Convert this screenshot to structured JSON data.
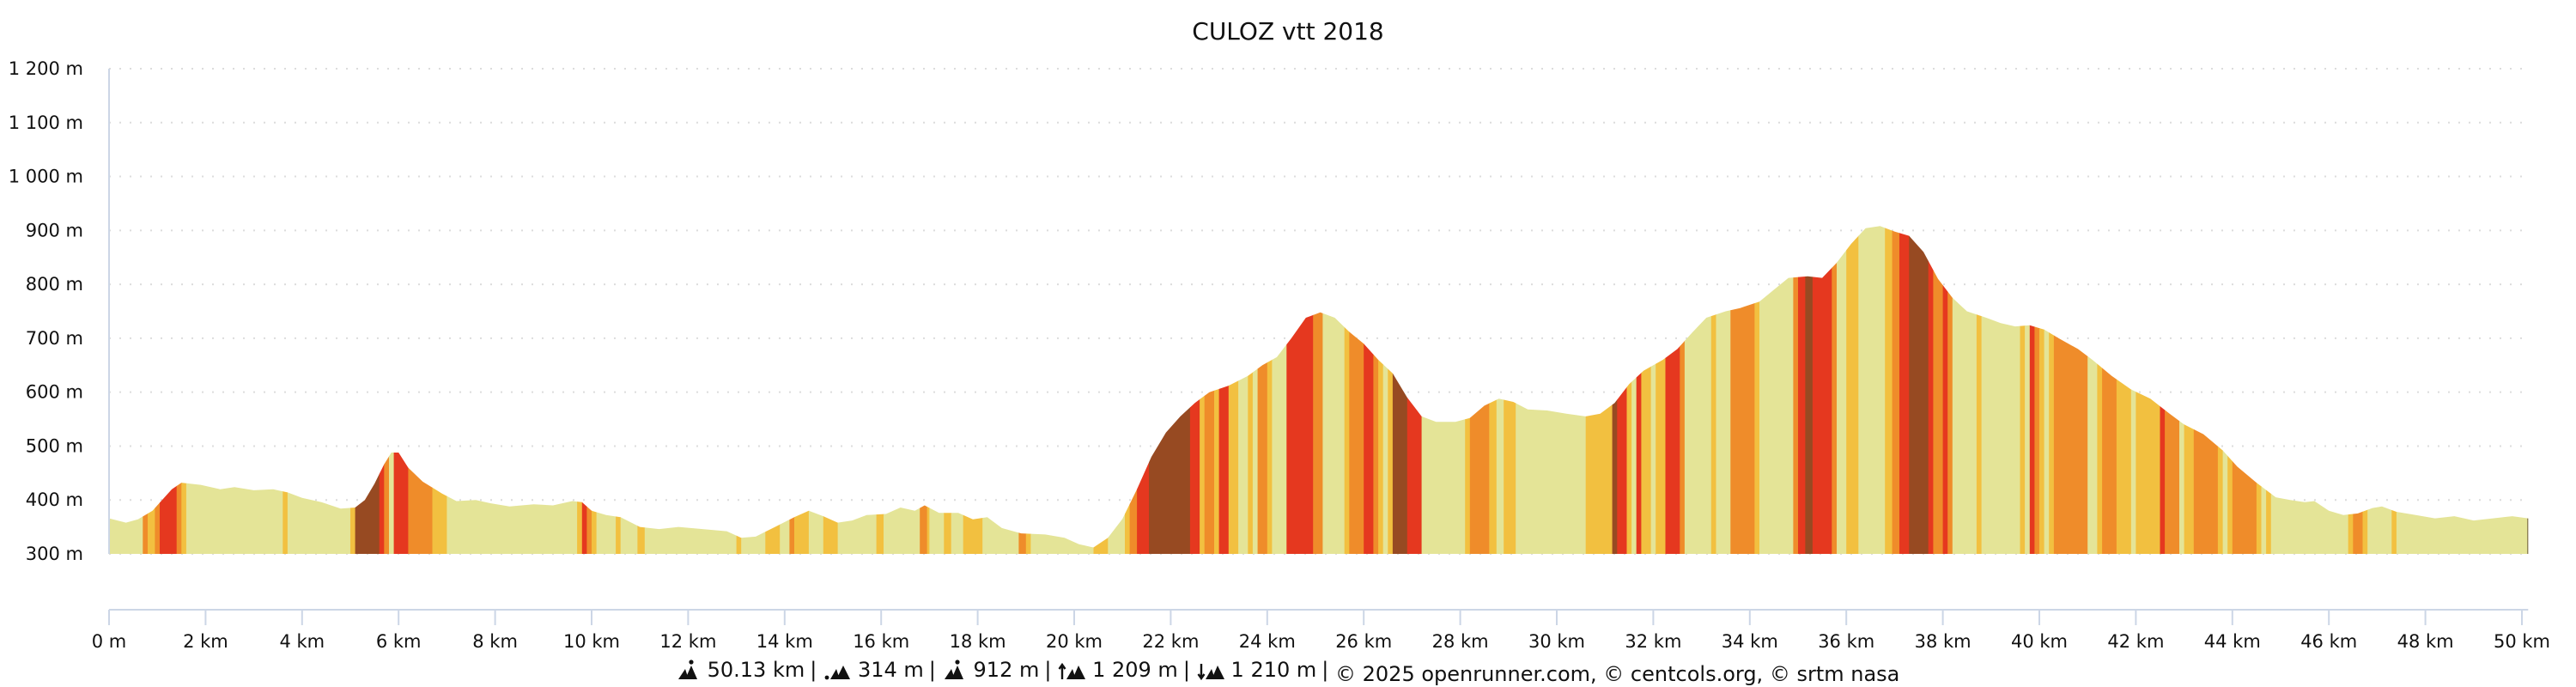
{
  "chart_data": {
    "type": "area",
    "title": "CULOZ vtt 2018",
    "xlabel": "",
    "ylabel": "",
    "x_unit": "km",
    "y_unit": "m",
    "xlim": [
      0,
      50.13
    ],
    "ylim": [
      300,
      1200
    ],
    "grid": true,
    "y_ticks": [
      "1 200 m",
      "1 100 m",
      "1 000 m",
      "900 m",
      "800 m",
      "700 m",
      "600 m",
      "500 m",
      "400 m",
      "300 m"
    ],
    "y_tick_values": [
      1200,
      1100,
      1000,
      900,
      800,
      700,
      600,
      500,
      400,
      300
    ],
    "x_ticks": [
      "0 m",
      "2 km",
      "4 km",
      "6 km",
      "8 km",
      "10 km",
      "12 km",
      "14 km",
      "16 km",
      "18 km",
      "20 km",
      "22 km",
      "24 km",
      "26 km",
      "28 km",
      "30 km",
      "32 km",
      "34 km",
      "36 km",
      "38 km",
      "40 km",
      "42 km",
      "44 km",
      "46 km",
      "48 km",
      "50 km"
    ],
    "x_tick_values": [
      0,
      2,
      4,
      6,
      8,
      10,
      12,
      14,
      16,
      18,
      20,
      22,
      24,
      26,
      28,
      30,
      32,
      34,
      36,
      38,
      40,
      42,
      44,
      46,
      48,
      50
    ],
    "slope_colors": {
      "flat": "#e4e497",
      "gentle": "#f2c040",
      "moderate": "#ef8c2a",
      "steep": "#e5381f",
      "very_steep": "#974a22"
    },
    "profile": [
      [
        0.0,
        366
      ],
      [
        0.35,
        358
      ],
      [
        0.6,
        364
      ],
      [
        0.9,
        380
      ],
      [
        1.1,
        400
      ],
      [
        1.3,
        420
      ],
      [
        1.5,
        432
      ],
      [
        1.9,
        428
      ],
      [
        2.3,
        420
      ],
      [
        2.6,
        424
      ],
      [
        3.0,
        418
      ],
      [
        3.4,
        420
      ],
      [
        3.7,
        414
      ],
      [
        4.0,
        404
      ],
      [
        4.4,
        396
      ],
      [
        4.8,
        384
      ],
      [
        5.1,
        386
      ],
      [
        5.3,
        400
      ],
      [
        5.5,
        430
      ],
      [
        5.7,
        466
      ],
      [
        5.85,
        488
      ],
      [
        6.0,
        488
      ],
      [
        6.2,
        460
      ],
      [
        6.5,
        434
      ],
      [
        6.9,
        412
      ],
      [
        7.2,
        398
      ],
      [
        7.6,
        400
      ],
      [
        7.9,
        394
      ],
      [
        8.3,
        388
      ],
      [
        8.8,
        392
      ],
      [
        9.2,
        390
      ],
      [
        9.6,
        398
      ],
      [
        9.8,
        396
      ],
      [
        10.0,
        380
      ],
      [
        10.3,
        372
      ],
      [
        10.6,
        368
      ],
      [
        11.0,
        350
      ],
      [
        11.4,
        346
      ],
      [
        11.8,
        350
      ],
      [
        12.3,
        346
      ],
      [
        12.8,
        342
      ],
      [
        13.1,
        330
      ],
      [
        13.4,
        332
      ],
      [
        13.8,
        350
      ],
      [
        14.2,
        368
      ],
      [
        14.5,
        380
      ],
      [
        14.8,
        370
      ],
      [
        15.1,
        358
      ],
      [
        15.4,
        362
      ],
      [
        15.7,
        372
      ],
      [
        16.1,
        374
      ],
      [
        16.4,
        386
      ],
      [
        16.7,
        380
      ],
      [
        16.9,
        390
      ],
      [
        17.2,
        376
      ],
      [
        17.6,
        376
      ],
      [
        17.9,
        364
      ],
      [
        18.2,
        368
      ],
      [
        18.5,
        348
      ],
      [
        18.9,
        338
      ],
      [
        19.4,
        336
      ],
      [
        19.8,
        330
      ],
      [
        20.1,
        318
      ],
      [
        20.4,
        312
      ],
      [
        20.7,
        330
      ],
      [
        21.0,
        365
      ],
      [
        21.3,
        420
      ],
      [
        21.6,
        480
      ],
      [
        21.9,
        525
      ],
      [
        22.2,
        555
      ],
      [
        22.5,
        580
      ],
      [
        22.8,
        600
      ],
      [
        23.2,
        612
      ],
      [
        23.6,
        630
      ],
      [
        23.9,
        650
      ],
      [
        24.2,
        665
      ],
      [
        24.5,
        700
      ],
      [
        24.8,
        738
      ],
      [
        25.1,
        748
      ],
      [
        25.4,
        738
      ],
      [
        25.7,
        712
      ],
      [
        26.0,
        690
      ],
      [
        26.3,
        660
      ],
      [
        26.6,
        635
      ],
      [
        26.9,
        590
      ],
      [
        27.2,
        555
      ],
      [
        27.5,
        545
      ],
      [
        27.9,
        545
      ],
      [
        28.2,
        552
      ],
      [
        28.5,
        575
      ],
      [
        28.8,
        588
      ],
      [
        29.1,
        582
      ],
      [
        29.4,
        568
      ],
      [
        29.8,
        566
      ],
      [
        30.2,
        560
      ],
      [
        30.6,
        555
      ],
      [
        30.9,
        560
      ],
      [
        31.2,
        580
      ],
      [
        31.5,
        615
      ],
      [
        31.8,
        640
      ],
      [
        32.2,
        660
      ],
      [
        32.5,
        680
      ],
      [
        32.8,
        710
      ],
      [
        33.1,
        738
      ],
      [
        33.5,
        750
      ],
      [
        33.8,
        756
      ],
      [
        34.2,
        768
      ],
      [
        34.5,
        790
      ],
      [
        34.8,
        812
      ],
      [
        35.2,
        815
      ],
      [
        35.5,
        812
      ],
      [
        35.8,
        840
      ],
      [
        36.1,
        875
      ],
      [
        36.4,
        904
      ],
      [
        36.7,
        908
      ],
      [
        37.0,
        898
      ],
      [
        37.3,
        890
      ],
      [
        37.6,
        860
      ],
      [
        37.9,
        810
      ],
      [
        38.2,
        775
      ],
      [
        38.5,
        750
      ],
      [
        38.9,
        738
      ],
      [
        39.2,
        728
      ],
      [
        39.5,
        722
      ],
      [
        39.8,
        724
      ],
      [
        40.1,
        716
      ],
      [
        40.4,
        700
      ],
      [
        40.8,
        680
      ],
      [
        41.1,
        660
      ],
      [
        41.5,
        630
      ],
      [
        41.9,
        605
      ],
      [
        42.3,
        588
      ],
      [
        42.7,
        560
      ],
      [
        43.0,
        540
      ],
      [
        43.4,
        522
      ],
      [
        43.8,
        492
      ],
      [
        44.1,
        462
      ],
      [
        44.5,
        432
      ],
      [
        44.9,
        405
      ],
      [
        45.2,
        400
      ],
      [
        45.5,
        396
      ],
      [
        45.7,
        398
      ],
      [
        46.0,
        380
      ],
      [
        46.3,
        372
      ],
      [
        46.6,
        375
      ],
      [
        46.9,
        385
      ],
      [
        47.1,
        388
      ],
      [
        47.4,
        378
      ],
      [
        47.8,
        372
      ],
      [
        48.2,
        366
      ],
      [
        48.6,
        370
      ],
      [
        49.0,
        362
      ],
      [
        49.4,
        366
      ],
      [
        49.8,
        370
      ],
      [
        50.13,
        366
      ]
    ],
    "segments": [
      [
        0.0,
        0.7,
        "flat"
      ],
      [
        0.7,
        0.8,
        "moderate"
      ],
      [
        0.8,
        0.95,
        "gentle"
      ],
      [
        0.95,
        1.05,
        "moderate"
      ],
      [
        1.05,
        1.4,
        "steep"
      ],
      [
        1.4,
        1.5,
        "moderate"
      ],
      [
        1.5,
        1.6,
        "gentle"
      ],
      [
        1.6,
        3.6,
        "flat"
      ],
      [
        3.6,
        3.7,
        "gentle"
      ],
      [
        3.7,
        5.0,
        "flat"
      ],
      [
        5.0,
        5.1,
        "gentle"
      ],
      [
        5.1,
        5.6,
        "very_steep"
      ],
      [
        5.6,
        5.7,
        "steep"
      ],
      [
        5.7,
        5.8,
        "moderate"
      ],
      [
        5.8,
        5.9,
        "flat"
      ],
      [
        5.9,
        6.2,
        "steep"
      ],
      [
        6.2,
        6.7,
        "moderate"
      ],
      [
        6.7,
        7.0,
        "gentle"
      ],
      [
        7.0,
        9.7,
        "flat"
      ],
      [
        9.7,
        9.8,
        "gentle"
      ],
      [
        9.8,
        9.9,
        "steep"
      ],
      [
        9.9,
        10.0,
        "moderate"
      ],
      [
        10.0,
        10.1,
        "gentle"
      ],
      [
        10.1,
        10.5,
        "flat"
      ],
      [
        10.5,
        10.6,
        "gentle"
      ],
      [
        10.6,
        10.95,
        "flat"
      ],
      [
        10.95,
        11.1,
        "gentle"
      ],
      [
        11.1,
        13.0,
        "flat"
      ],
      [
        13.0,
        13.1,
        "gentle"
      ],
      [
        13.1,
        13.6,
        "flat"
      ],
      [
        13.6,
        13.9,
        "gentle"
      ],
      [
        13.9,
        14.1,
        "flat"
      ],
      [
        14.1,
        14.2,
        "moderate"
      ],
      [
        14.2,
        14.5,
        "gentle"
      ],
      [
        14.5,
        14.8,
        "flat"
      ],
      [
        14.8,
        15.1,
        "gentle"
      ],
      [
        15.1,
        15.9,
        "flat"
      ],
      [
        15.9,
        16.05,
        "gentle"
      ],
      [
        16.05,
        16.8,
        "flat"
      ],
      [
        16.8,
        16.95,
        "moderate"
      ],
      [
        16.95,
        17.0,
        "gentle"
      ],
      [
        17.0,
        17.3,
        "flat"
      ],
      [
        17.3,
        17.45,
        "gentle"
      ],
      [
        17.45,
        17.7,
        "flat"
      ],
      [
        17.7,
        18.1,
        "gentle"
      ],
      [
        18.1,
        18.85,
        "flat"
      ],
      [
        18.85,
        19.0,
        "moderate"
      ],
      [
        19.0,
        19.1,
        "gentle"
      ],
      [
        19.1,
        20.4,
        "flat"
      ],
      [
        20.4,
        20.7,
        "gentle"
      ],
      [
        20.7,
        21.05,
        "flat"
      ],
      [
        21.05,
        21.15,
        "gentle"
      ],
      [
        21.15,
        21.3,
        "moderate"
      ],
      [
        21.3,
        21.55,
        "steep"
      ],
      [
        21.55,
        22.4,
        "very_steep"
      ],
      [
        22.4,
        22.6,
        "steep"
      ],
      [
        22.6,
        22.7,
        "gentle"
      ],
      [
        22.7,
        22.9,
        "moderate"
      ],
      [
        22.9,
        23.0,
        "gentle"
      ],
      [
        23.0,
        23.2,
        "steep"
      ],
      [
        23.2,
        23.4,
        "gentle"
      ],
      [
        23.4,
        23.6,
        "flat"
      ],
      [
        23.6,
        23.7,
        "gentle"
      ],
      [
        23.7,
        23.8,
        "flat"
      ],
      [
        23.8,
        24.0,
        "moderate"
      ],
      [
        24.0,
        24.1,
        "gentle"
      ],
      [
        24.1,
        24.4,
        "flat"
      ],
      [
        24.4,
        24.95,
        "steep"
      ],
      [
        24.95,
        25.15,
        "moderate"
      ],
      [
        25.15,
        25.6,
        "flat"
      ],
      [
        25.6,
        25.7,
        "gentle"
      ],
      [
        25.7,
        26.0,
        "moderate"
      ],
      [
        26.0,
        26.2,
        "steep"
      ],
      [
        26.2,
        26.3,
        "moderate"
      ],
      [
        26.3,
        26.4,
        "gentle"
      ],
      [
        26.4,
        26.5,
        "flat"
      ],
      [
        26.5,
        26.6,
        "gentle"
      ],
      [
        26.6,
        26.9,
        "very_steep"
      ],
      [
        26.9,
        27.2,
        "steep"
      ],
      [
        27.2,
        28.1,
        "flat"
      ],
      [
        28.1,
        28.2,
        "gentle"
      ],
      [
        28.2,
        28.6,
        "moderate"
      ],
      [
        28.6,
        28.75,
        "gentle"
      ],
      [
        28.75,
        28.9,
        "flat"
      ],
      [
        28.9,
        29.15,
        "gentle"
      ],
      [
        29.15,
        30.6,
        "flat"
      ],
      [
        30.6,
        31.15,
        "gentle"
      ],
      [
        31.15,
        31.25,
        "very_steep"
      ],
      [
        31.25,
        31.45,
        "steep"
      ],
      [
        31.45,
        31.55,
        "gentle"
      ],
      [
        31.55,
        31.65,
        "flat"
      ],
      [
        31.65,
        31.75,
        "steep"
      ],
      [
        31.75,
        31.95,
        "gentle"
      ],
      [
        31.95,
        32.05,
        "flat"
      ],
      [
        32.05,
        32.25,
        "gentle"
      ],
      [
        32.25,
        32.55,
        "steep"
      ],
      [
        32.55,
        32.65,
        "moderate"
      ],
      [
        32.65,
        33.2,
        "flat"
      ],
      [
        33.2,
        33.3,
        "gentle"
      ],
      [
        33.3,
        33.6,
        "flat"
      ],
      [
        33.6,
        34.1,
        "moderate"
      ],
      [
        34.1,
        34.2,
        "gentle"
      ],
      [
        34.2,
        34.9,
        "flat"
      ],
      [
        34.9,
        35.0,
        "moderate"
      ],
      [
        35.0,
        35.15,
        "steep"
      ],
      [
        35.15,
        35.3,
        "very_steep"
      ],
      [
        35.3,
        35.7,
        "steep"
      ],
      [
        35.7,
        35.8,
        "moderate"
      ],
      [
        35.8,
        36.0,
        "flat"
      ],
      [
        36.0,
        36.25,
        "gentle"
      ],
      [
        36.25,
        36.8,
        "flat"
      ],
      [
        36.8,
        36.95,
        "gentle"
      ],
      [
        36.95,
        37.1,
        "moderate"
      ],
      [
        37.1,
        37.3,
        "steep"
      ],
      [
        37.3,
        37.7,
        "very_steep"
      ],
      [
        37.7,
        37.8,
        "steep"
      ],
      [
        37.8,
        38.0,
        "moderate"
      ],
      [
        38.0,
        38.1,
        "steep"
      ],
      [
        38.1,
        38.2,
        "moderate"
      ],
      [
        38.2,
        38.7,
        "flat"
      ],
      [
        38.7,
        38.8,
        "gentle"
      ],
      [
        38.8,
        39.6,
        "flat"
      ],
      [
        39.6,
        39.7,
        "gentle"
      ],
      [
        39.7,
        39.8,
        "flat"
      ],
      [
        39.8,
        39.9,
        "steep"
      ],
      [
        39.9,
        40.0,
        "moderate"
      ],
      [
        40.0,
        40.1,
        "gentle"
      ],
      [
        40.1,
        40.2,
        "flat"
      ],
      [
        40.2,
        40.3,
        "gentle"
      ],
      [
        40.3,
        41.0,
        "moderate"
      ],
      [
        41.0,
        41.2,
        "flat"
      ],
      [
        41.2,
        41.3,
        "gentle"
      ],
      [
        41.3,
        41.6,
        "moderate"
      ],
      [
        41.6,
        41.9,
        "gentle"
      ],
      [
        41.9,
        42.0,
        "flat"
      ],
      [
        42.0,
        42.5,
        "gentle"
      ],
      [
        42.5,
        42.6,
        "steep"
      ],
      [
        42.6,
        42.9,
        "moderate"
      ],
      [
        42.9,
        43.0,
        "flat"
      ],
      [
        43.0,
        43.2,
        "gentle"
      ],
      [
        43.2,
        43.7,
        "moderate"
      ],
      [
        43.7,
        43.8,
        "gentle"
      ],
      [
        43.8,
        43.9,
        "flat"
      ],
      [
        43.9,
        44.0,
        "gentle"
      ],
      [
        44.0,
        44.5,
        "moderate"
      ],
      [
        44.5,
        44.6,
        "gentle"
      ],
      [
        44.6,
        44.7,
        "flat"
      ],
      [
        44.7,
        44.8,
        "gentle"
      ],
      [
        44.8,
        46.4,
        "flat"
      ],
      [
        46.4,
        46.5,
        "gentle"
      ],
      [
        46.5,
        46.7,
        "moderate"
      ],
      [
        46.7,
        46.8,
        "gentle"
      ],
      [
        46.8,
        47.3,
        "flat"
      ],
      [
        47.3,
        47.4,
        "gentle"
      ],
      [
        47.4,
        50.13,
        "flat"
      ]
    ]
  },
  "footer": {
    "distance": "50.13 km",
    "min_altitude": "314 m",
    "max_altitude": "912 m",
    "elevation_gain": "1 209 m",
    "elevation_loss": "1 210 m",
    "separator": "|",
    "credits": "© 2025 openrunner.com, © centcols.org, © srtm nasa"
  },
  "colors": {
    "axis": "#ccd6e6",
    "grid": "#dcdcdc",
    "text": "#111111"
  }
}
